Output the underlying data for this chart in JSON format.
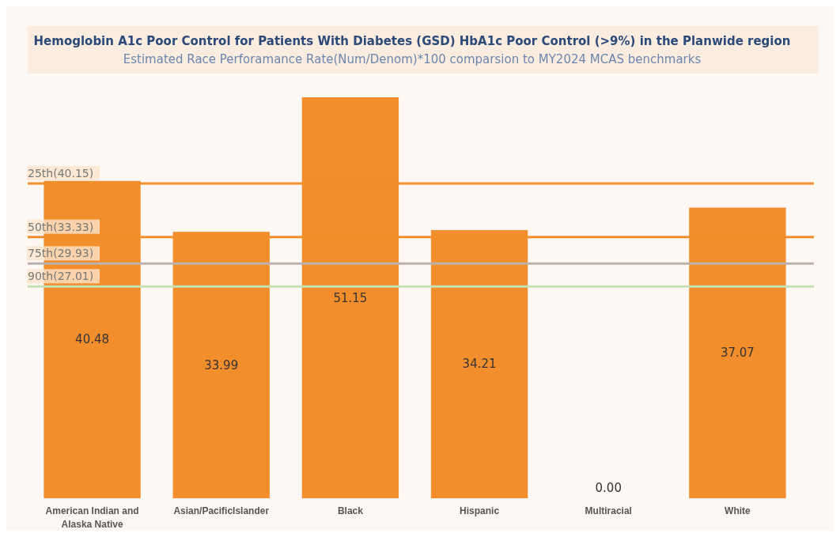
{
  "chart_data": {
    "type": "bar",
    "title": "Hemoglobin A1c Poor Control for Patients With Diabetes (GSD) HbA1c Poor Control (>9%) in the Planwide region",
    "subtitle": "Estimated Race Perforamance Rate(Num/Denom)*100 comparsion to MY2024 MCAS benchmarks",
    "categories": [
      "American Indian and Alaska Native",
      "Asian/PacificIslander",
      "Black",
      "Hispanic",
      "Multiracial",
      "White"
    ],
    "values": [
      40.48,
      33.99,
      51.15,
      34.21,
      0.0,
      37.07
    ],
    "color": "#f28e2b",
    "value_labels": [
      "40.48",
      "33.99",
      "51.15",
      "34.21",
      "0.00",
      "37.07"
    ],
    "ref_lines": [
      {
        "axis": "y",
        "value": 40.15,
        "label": "25th(40.15)",
        "color": "#f28e2b"
      },
      {
        "axis": "y",
        "value": 33.33,
        "label": "50th(33.33)",
        "color": "#f28e2b"
      },
      {
        "axis": "y",
        "value": 29.93,
        "label": "75th(29.93)",
        "color": "#bab0ac"
      },
      {
        "axis": "y",
        "value": 27.01,
        "label": "90th(27.01)",
        "color": "#c5e0b4"
      }
    ]
  }
}
